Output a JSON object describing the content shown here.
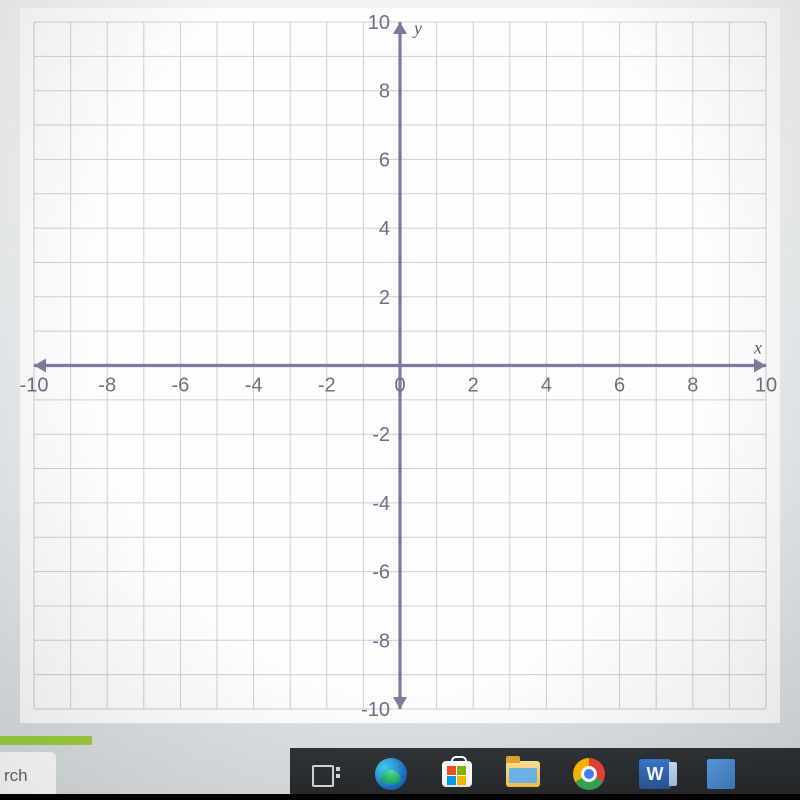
{
  "graph": {
    "type": "cartesian-grid",
    "xmin": -10,
    "xmax": 10,
    "ymin": -10,
    "ymax": 10,
    "x_ticks": [
      -10,
      -8,
      -6,
      -4,
      -2,
      0,
      2,
      4,
      6,
      8,
      10
    ],
    "y_ticks": [
      -10,
      -8,
      -6,
      -4,
      -2,
      2,
      4,
      6,
      8,
      10
    ],
    "x_label": "x",
    "y_label": "y",
    "grid_color": "#c9d0d6",
    "axis_color": "#7b7da0",
    "tick_font_size": 20,
    "label_font_size": 18,
    "background": "#fdfdfd",
    "grid_step": 1,
    "tick_step": 2
  },
  "search_fragment": "rch",
  "progress_color": "#9fcf3c",
  "taskbar": {
    "background": "#2b2f33",
    "items": [
      {
        "name": "task-view-icon"
      },
      {
        "name": "edge-icon"
      },
      {
        "name": "ms-store-icon"
      },
      {
        "name": "file-explorer-icon"
      },
      {
        "name": "chrome-icon"
      },
      {
        "name": "word-icon"
      },
      {
        "name": "app-tile-icon"
      }
    ]
  }
}
